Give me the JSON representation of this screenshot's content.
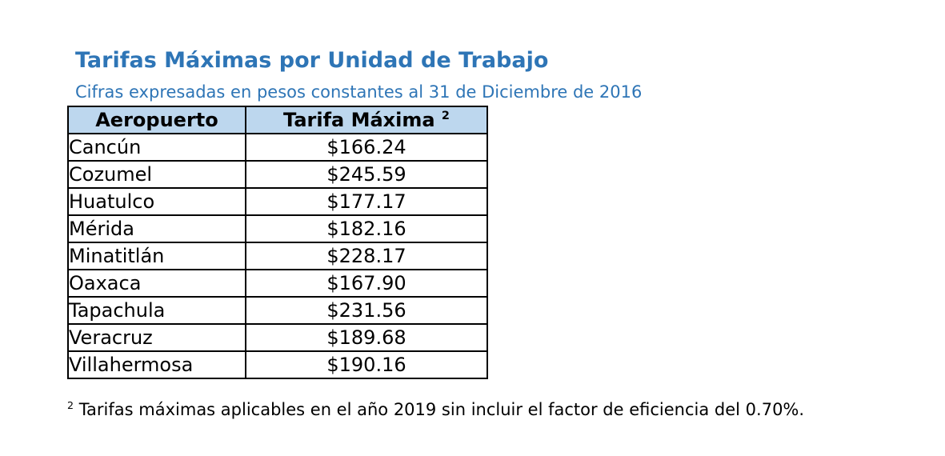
{
  "title": "Tarifas Máximas por Unidad de Trabajo",
  "subtitle": "Cifras expresadas en pesos constantes al 31 de Diciembre de 2016",
  "table": {
    "headers": {
      "airport": "Aeropuerto",
      "rate": "Tarifa Máxima",
      "rate_note_mark": "2"
    },
    "rows": [
      {
        "airport": "Cancún",
        "rate": "$166.24"
      },
      {
        "airport": "Cozumel",
        "rate": "$245.59"
      },
      {
        "airport": "Huatulco",
        "rate": "$177.17"
      },
      {
        "airport": "Mérida",
        "rate": "$182.16"
      },
      {
        "airport": "Minatitlán",
        "rate": "$228.17"
      },
      {
        "airport": "Oaxaca",
        "rate": "$167.90"
      },
      {
        "airport": "Tapachula",
        "rate": "$231.56"
      },
      {
        "airport": "Veracruz",
        "rate": "$189.68"
      },
      {
        "airport": "Villahermosa",
        "rate": "$190.16"
      }
    ]
  },
  "footnote": {
    "mark": "2",
    "text": "Tarifas máximas aplicables en el año 2019 sin incluir el factor de eficiencia del 0.70%."
  }
}
